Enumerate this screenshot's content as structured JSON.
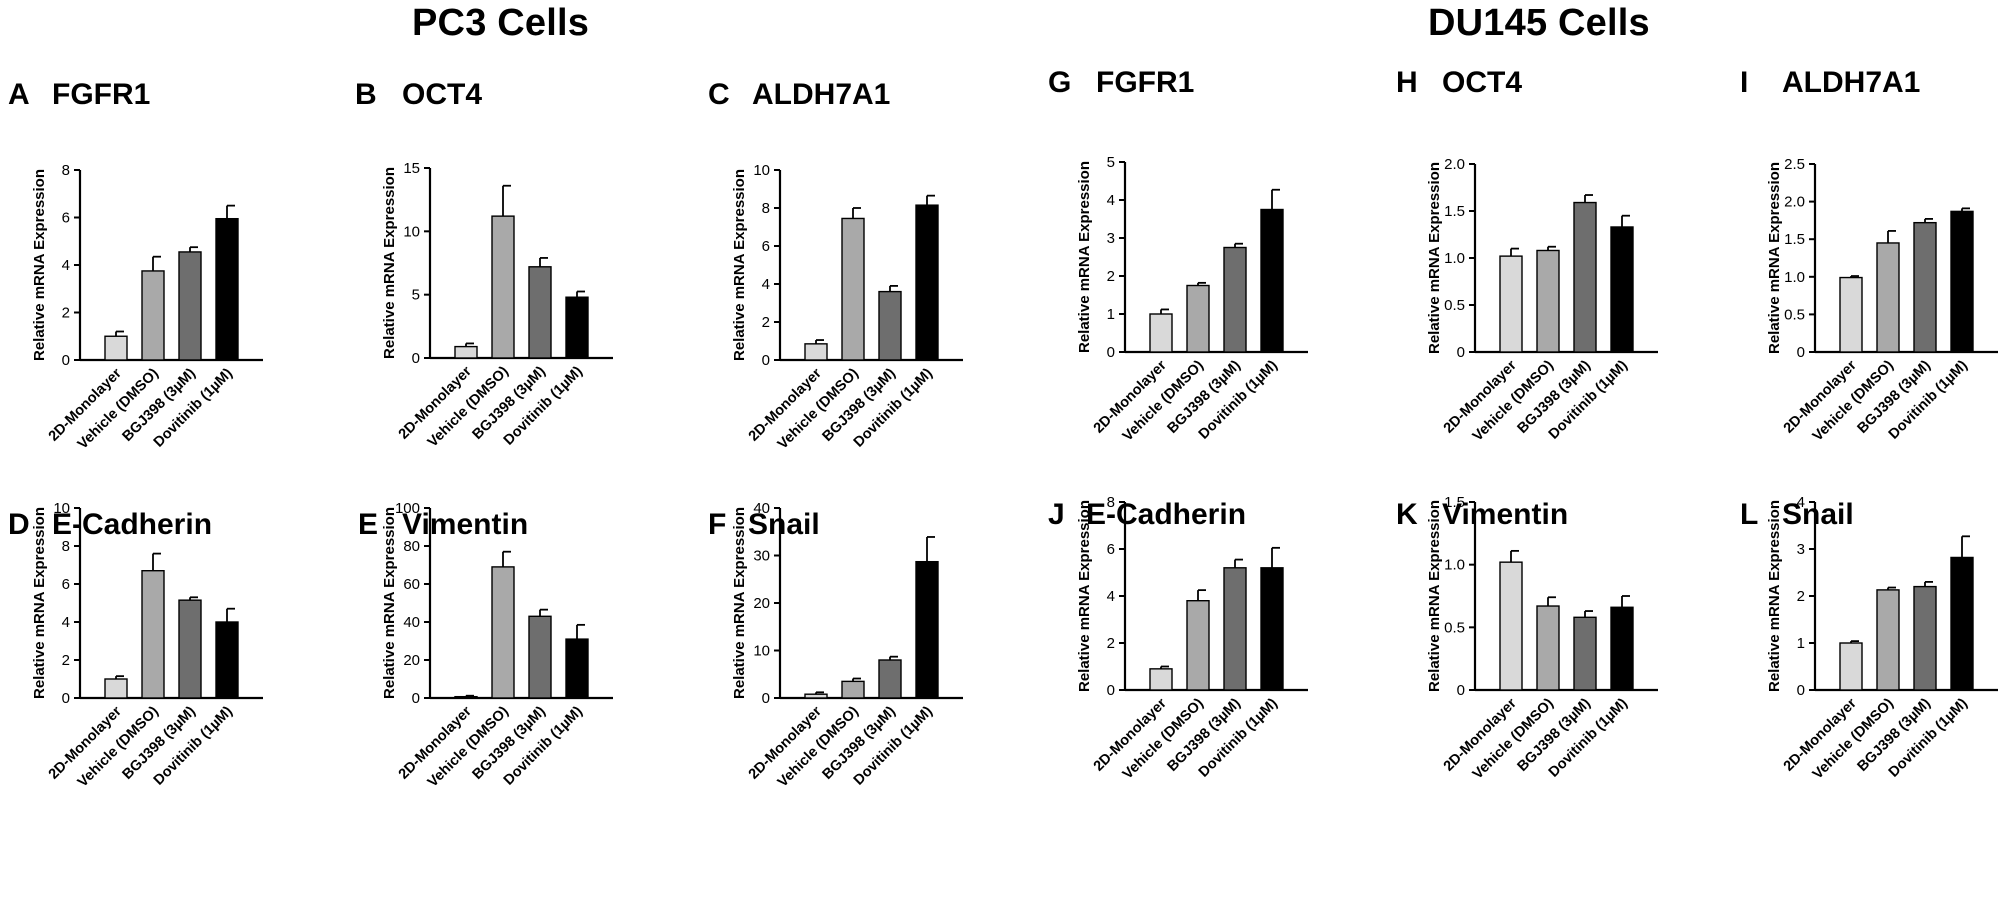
{
  "titles": {
    "pc3": "PC3 Cells",
    "du145": "DU145 Cells"
  },
  "categories": [
    "2D-Monolayer",
    "Vehicle (DMSO)",
    "BGJ398 (3µM)",
    "Dovitinib (1µM)"
  ],
  "ylabel": "Relative mRNA Expression",
  "bar_colors": [
    "#d9d9d9",
    "#a9a9a9",
    "#6e6e6e",
    "#000000"
  ],
  "chart_data": [
    {
      "type": "bar",
      "panel": "A",
      "title": "FGFR1",
      "group": "PC3 Cells",
      "ylim": [
        0,
        8
      ],
      "ticks": [
        "0",
        "2",
        "4",
        "6",
        "8"
      ],
      "values": [
        1.0,
        3.75,
        4.55,
        5.95
      ],
      "errors": [
        0.2,
        0.6,
        0.2,
        0.55
      ]
    },
    {
      "type": "bar",
      "panel": "B",
      "title": "OCT4",
      "group": "PC3 Cells",
      "ylim": [
        0,
        15
      ],
      "ticks": [
        "0",
        "5",
        "10",
        "15"
      ],
      "values": [
        0.9,
        11.2,
        7.2,
        4.8
      ],
      "errors": [
        0.25,
        2.4,
        0.7,
        0.45
      ]
    },
    {
      "type": "bar",
      "panel": "C",
      "title": "ALDH7A1",
      "group": "PC3 Cells",
      "ylim": [
        0,
        10
      ],
      "ticks": [
        "0",
        "2",
        "4",
        "6",
        "8",
        "10"
      ],
      "values": [
        0.85,
        7.45,
        3.6,
        8.15
      ],
      "errors": [
        0.2,
        0.55,
        0.3,
        0.5
      ]
    },
    {
      "type": "bar",
      "panel": "D",
      "title": "E-Cadherin",
      "group": "PC3 Cells",
      "ylim": [
        0,
        10
      ],
      "ticks": [
        "0",
        "2",
        "4",
        "6",
        "8",
        "10"
      ],
      "values": [
        1.0,
        6.7,
        5.15,
        4.0
      ],
      "errors": [
        0.15,
        0.9,
        0.15,
        0.7
      ]
    },
    {
      "type": "bar",
      "panel": "E",
      "title": "Vimentin",
      "group": "PC3 Cells",
      "ylim": [
        0,
        100
      ],
      "ticks": [
        "0",
        "20",
        "40",
        "60",
        "80",
        "100"
      ],
      "values": [
        0.7,
        69,
        43,
        31
      ],
      "errors": [
        0.5,
        8,
        3.5,
        7.5
      ]
    },
    {
      "type": "bar",
      "panel": "F",
      "title": "Snail",
      "group": "PC3 Cells",
      "ylim": [
        0,
        40
      ],
      "ticks": [
        "0",
        "10",
        "20",
        "30",
        "40"
      ],
      "values": [
        0.8,
        3.5,
        8.0,
        28.7
      ],
      "errors": [
        0.4,
        0.6,
        0.7,
        5.2
      ]
    },
    {
      "type": "bar",
      "panel": "G",
      "title": "FGFR1",
      "group": "DU145 Cells",
      "ylim": [
        0,
        5
      ],
      "ticks": [
        "0",
        "1",
        "2",
        "3",
        "4",
        "5"
      ],
      "values": [
        1.0,
        1.75,
        2.75,
        3.75
      ],
      "errors": [
        0.12,
        0.07,
        0.1,
        0.52
      ]
    },
    {
      "type": "bar",
      "panel": "H",
      "title": "OCT4",
      "group": "DU145 Cells",
      "ylim": [
        0,
        2.0
      ],
      "ticks": [
        "0",
        "0.5",
        "1.0",
        "1.5",
        "2.0"
      ],
      "values": [
        1.02,
        1.08,
        1.59,
        1.33
      ],
      "errors": [
        0.08,
        0.04,
        0.08,
        0.12
      ]
    },
    {
      "type": "bar",
      "panel": "I",
      "title": "ALDH7A1",
      "group": "DU145 Cells",
      "ylim": [
        0,
        2.5
      ],
      "ticks": [
        "0",
        "0.5",
        "1.0",
        "1.5",
        "2.0",
        "2.5"
      ],
      "values": [
        0.99,
        1.45,
        1.72,
        1.87
      ],
      "errors": [
        0.02,
        0.16,
        0.05,
        0.04
      ]
    },
    {
      "type": "bar",
      "panel": "J",
      "title": "E-Cadherin",
      "group": "DU145 Cells",
      "ylim": [
        0,
        8
      ],
      "ticks": [
        "0",
        "2",
        "4",
        "6",
        "8"
      ],
      "values": [
        0.9,
        3.8,
        5.2,
        5.2
      ],
      "errors": [
        0.1,
        0.45,
        0.35,
        0.85
      ]
    },
    {
      "type": "bar",
      "panel": "K",
      "title": "Vimentin",
      "group": "DU145 Cells",
      "ylim": [
        0,
        1.5
      ],
      "ticks": [
        "0",
        "0.5",
        "1.0",
        "1.5"
      ],
      "values": [
        1.02,
        0.67,
        0.58,
        0.66
      ],
      "errors": [
        0.09,
        0.07,
        0.05,
        0.09
      ]
    },
    {
      "type": "bar",
      "panel": "L",
      "title": "Snail",
      "group": "DU145 Cells",
      "ylim": [
        0,
        4
      ],
      "ticks": [
        "0",
        "1",
        "2",
        "3",
        "4"
      ],
      "values": [
        1.0,
        2.13,
        2.2,
        2.82
      ],
      "errors": [
        0.04,
        0.05,
        0.1,
        0.45
      ]
    }
  ]
}
